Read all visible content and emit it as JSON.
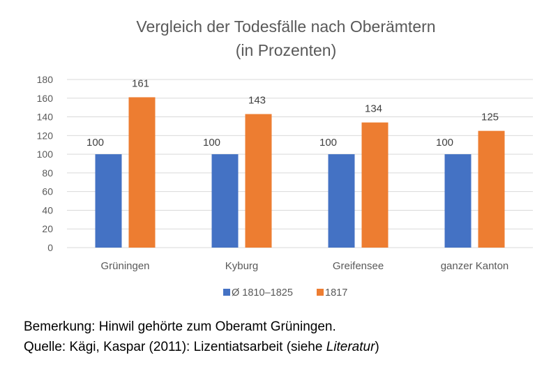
{
  "chart_data": {
    "type": "bar",
    "title": [
      "Vergleich der Todesfälle nach Oberämtern",
      "(in Prozenten)"
    ],
    "categories": [
      "Grüningen",
      "Kyburg",
      "Greifensee",
      "ganzer Kanton"
    ],
    "series": [
      {
        "name": "Ø 1810–1825",
        "values": [
          100,
          100,
          100,
          100
        ],
        "color": "#4472C4"
      },
      {
        "name": "1817",
        "values": [
          161,
          143,
          134,
          125
        ],
        "color": "#ED7D31"
      }
    ],
    "ylim": [
      0,
      180
    ],
    "yticks": [
      0,
      20,
      40,
      60,
      80,
      100,
      120,
      140,
      160,
      180
    ],
    "grid": true,
    "legend": "bottom",
    "xlabel": "",
    "ylabel": ""
  },
  "notes": {
    "remark": "Bemerkung: Hinwil gehörte zum Oberamt Grüningen.",
    "source_prefix": "Quelle: Kägi, Kaspar (2011): Lizentiatsarbeit (siehe ",
    "source_italic": "Literatur",
    "source_suffix": ")"
  }
}
